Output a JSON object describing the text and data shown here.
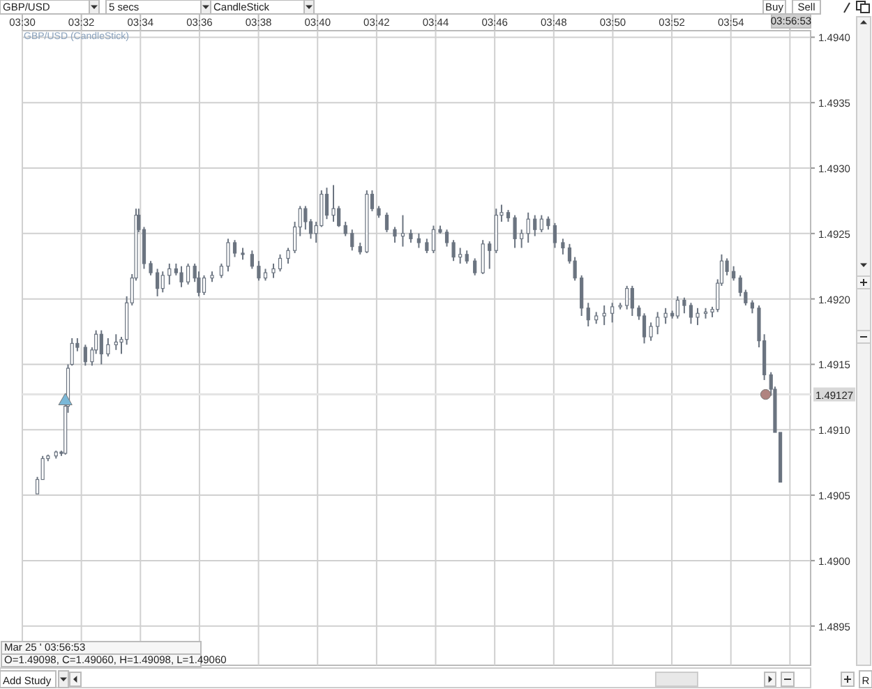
{
  "chart_data": {
    "type": "candlestick",
    "title": "GBP/USD (CandleStick)",
    "xlim": [
      3.5,
      3.945
    ],
    "ylim": [
      1.4892,
      1.49405
    ],
    "xticks": [
      {
        "value": 3.5,
        "label": "03:30"
      },
      {
        "value": 3.53333,
        "label": "03:32"
      },
      {
        "value": 3.56667,
        "label": "03:34"
      },
      {
        "value": 3.6,
        "label": "03:36"
      },
      {
        "value": 3.63333,
        "label": "03:38"
      },
      {
        "value": 3.66667,
        "label": "03:40"
      },
      {
        "value": 3.7,
        "label": "03:42"
      },
      {
        "value": 3.73333,
        "label": "03:44"
      },
      {
        "value": 3.76667,
        "label": "03:46"
      },
      {
        "value": 3.8,
        "label": "03:48"
      },
      {
        "value": 3.83333,
        "label": "03:50"
      },
      {
        "value": 3.86667,
        "label": "03:52"
      },
      {
        "value": 3.9,
        "label": "03:54"
      },
      {
        "value": 3.93333,
        "label": null
      }
    ],
    "yticks": [
      1.4895,
      {
        "value": 1.49,
        "label": "1.4900"
      },
      1.4905,
      {
        "value": 1.491,
        "label": "1.4910"
      },
      1.4915,
      {
        "value": 1.492,
        "label": "1.4920"
      },
      1.4925,
      {
        "value": 1.493,
        "label": "1.4930"
      },
      1.4935,
      {
        "value": 1.494,
        "label": "1.4940"
      }
    ],
    "grid": true,
    "ref_lines": [
      {
        "axis": "y",
        "value": 1.49127,
        "label": "1.49127",
        "color": "#e4e4e4"
      }
    ],
    "series": [
      {
        "color": "#6b7480",
        "x": [
          3.50848,
          3.51149,
          3.5145,
          3.51902,
          3.52203,
          3.52429,
          3.5258,
          3.52805,
          3.53107,
          3.53558,
          3.53935,
          3.54161,
          3.54462,
          3.54839,
          3.5529,
          3.55592,
          3.55893,
          3.56194,
          3.5642,
          3.5657,
          3.56872,
          3.57248,
          3.57625,
          3.57926,
          3.58302,
          3.58679,
          3.5898,
          3.59357,
          3.59733,
          3.59959,
          3.6026,
          3.60712,
          3.61239,
          3.61616,
          3.61992,
          3.62444,
          3.62971,
          3.63347,
          3.63724,
          3.64176,
          3.64552,
          3.65004,
          3.65381,
          3.65682,
          3.65983,
          3.66284,
          3.66585,
          3.66887,
          3.67188,
          3.67564,
          3.67865,
          3.68242,
          3.68618,
          3.6907,
          3.69447,
          3.69748,
          3.70124,
          3.70576,
          3.71028,
          3.7148,
          3.71932,
          3.72383,
          3.72835,
          3.73212,
          3.73588,
          3.73965,
          3.74341,
          3.74718,
          3.75094,
          3.75546,
          3.75998,
          3.76374,
          3.76751,
          3.77052,
          3.77429,
          3.77805,
          3.78182,
          3.78558,
          3.78935,
          3.79311,
          3.79688,
          3.80064,
          3.80516,
          3.80892,
          3.81194,
          3.8157,
          3.81947,
          3.82398,
          3.8285,
          3.83302,
          3.83754,
          3.8413,
          3.84431,
          3.84808,
          3.85109,
          3.85486,
          3.85862,
          3.86314,
          3.8669,
          3.86992,
          3.87368,
          3.87745,
          3.88121,
          3.88573,
          3.88949,
          3.89251,
          3.89477,
          3.89778,
          3.90154,
          3.90531,
          3.90832,
          3.91208,
          3.91585,
          3.91886,
          3.92263,
          3.92489,
          3.9279
        ],
        "ohlc": [
          [
            1.49051,
            1.49064,
            1.49051,
            1.49062
          ],
          [
            1.49062,
            1.4908,
            1.49062,
            1.49078
          ],
          [
            1.49078,
            1.49081,
            1.49076,
            1.4908
          ],
          [
            1.4908,
            1.49084,
            1.49078,
            1.49083
          ],
          [
            1.49083,
            1.49084,
            1.4908,
            1.49082
          ],
          [
            1.49082,
            1.49121,
            1.49081,
            1.49118
          ],
          [
            1.49118,
            1.4915,
            1.49113,
            1.49147
          ],
          [
            1.4915,
            1.4917,
            1.49149,
            1.49166
          ],
          [
            1.49166,
            1.4917,
            1.4916,
            1.49163
          ],
          [
            1.49163,
            1.49165,
            1.49149,
            1.49152
          ],
          [
            1.49152,
            1.49163,
            1.49149,
            1.49161
          ],
          [
            1.49161,
            1.49176,
            1.49158,
            1.49173
          ],
          [
            1.49173,
            1.49176,
            1.4915,
            1.49158
          ],
          [
            1.49158,
            1.4917,
            1.49156,
            1.49165
          ],
          [
            1.49165,
            1.49173,
            1.49161,
            1.49167
          ],
          [
            1.49167,
            1.49171,
            1.49158,
            1.49169
          ],
          [
            1.49169,
            1.49202,
            1.49165,
            1.49197
          ],
          [
            1.49197,
            1.49219,
            1.49195,
            1.49216
          ],
          [
            1.49216,
            1.49269,
            1.49214,
            1.49264
          ],
          [
            1.49264,
            1.49269,
            1.49251,
            1.49253
          ],
          [
            1.49253,
            1.49255,
            1.49223,
            1.49227
          ],
          [
            1.49227,
            1.49229,
            1.49218,
            1.4922
          ],
          [
            1.4922,
            1.49223,
            1.49202,
            1.49208
          ],
          [
            1.49208,
            1.49221,
            1.49205,
            1.49218
          ],
          [
            1.49218,
            1.49227,
            1.49211,
            1.49223
          ],
          [
            1.49223,
            1.49227,
            1.49218,
            1.4922
          ],
          [
            1.4922,
            1.49225,
            1.49209,
            1.49213
          ],
          [
            1.49213,
            1.49227,
            1.49211,
            1.49225
          ],
          [
            1.49225,
            1.49227,
            1.49213,
            1.49216
          ],
          [
            1.49216,
            1.49221,
            1.49202,
            1.49205
          ],
          [
            1.49205,
            1.49218,
            1.49203,
            1.49216
          ],
          [
            1.49216,
            1.49221,
            1.49213,
            1.49218
          ],
          [
            1.49218,
            1.49227,
            1.49216,
            1.49225
          ],
          [
            1.49225,
            1.49246,
            1.49221,
            1.49243
          ],
          [
            1.49243,
            1.49245,
            1.49232,
            1.49235
          ],
          [
            1.49235,
            1.49239,
            1.4923,
            1.49234
          ],
          [
            1.49234,
            1.49237,
            1.49223,
            1.49225
          ],
          [
            1.49225,
            1.49229,
            1.49214,
            1.49216
          ],
          [
            1.49216,
            1.49223,
            1.49214,
            1.4922
          ],
          [
            1.4922,
            1.49227,
            1.49216,
            1.49223
          ],
          [
            1.49223,
            1.49234,
            1.49221,
            1.49231
          ],
          [
            1.49231,
            1.49239,
            1.49227,
            1.49237
          ],
          [
            1.49237,
            1.49259,
            1.49235,
            1.49255
          ],
          [
            1.49255,
            1.49271,
            1.49248,
            1.49269
          ],
          [
            1.49269,
            1.49271,
            1.49253,
            1.49259
          ],
          [
            1.49259,
            1.49261,
            1.49246,
            1.4925
          ],
          [
            1.4925,
            1.49259,
            1.49243,
            1.49256
          ],
          [
            1.49256,
            1.49283,
            1.49255,
            1.4928
          ],
          [
            1.4928,
            1.49285,
            1.49261,
            1.49264
          ],
          [
            1.49264,
            1.49287,
            1.49259,
            1.49269
          ],
          [
            1.49269,
            1.49271,
            1.49255,
            1.49256
          ],
          [
            1.49256,
            1.49259,
            1.49248,
            1.4925
          ],
          [
            1.4925,
            1.49253,
            1.49237,
            1.4924
          ],
          [
            1.4924,
            1.49243,
            1.49234,
            1.49236
          ],
          [
            1.49236,
            1.49283,
            1.49235,
            1.4928
          ],
          [
            1.4928,
            1.49283,
            1.49267,
            1.49269
          ],
          [
            1.49269,
            1.49271,
            1.49262,
            1.49264
          ],
          [
            1.49264,
            1.49266,
            1.49251,
            1.49253
          ],
          [
            1.49253,
            1.49255,
            1.49243,
            1.49248
          ],
          [
            1.49248,
            1.49264,
            1.4924,
            1.4925
          ],
          [
            1.4925,
            1.49253,
            1.49243,
            1.49246
          ],
          [
            1.49246,
            1.4925,
            1.49239,
            1.49243
          ],
          [
            1.49243,
            1.49246,
            1.49235,
            1.49237
          ],
          [
            1.49237,
            1.49256,
            1.49235,
            1.49253
          ],
          [
            1.49253,
            1.49256,
            1.4925,
            1.49251
          ],
          [
            1.49251,
            1.49253,
            1.4924,
            1.49243
          ],
          [
            1.49243,
            1.49245,
            1.49229,
            1.49232
          ],
          [
            1.49232,
            1.49239,
            1.49227,
            1.49234
          ],
          [
            1.49234,
            1.49237,
            1.49227,
            1.49229
          ],
          [
            1.49229,
            1.49231,
            1.49218,
            1.4922
          ],
          [
            1.4922,
            1.49245,
            1.49219,
            1.49242
          ],
          [
            1.49242,
            1.49244,
            1.49223,
            1.49237
          ],
          [
            1.49237,
            1.49269,
            1.49235,
            1.49264
          ],
          [
            1.49264,
            1.49272,
            1.49259,
            1.49266
          ],
          [
            1.49266,
            1.49268,
            1.49259,
            1.49262
          ],
          [
            1.49262,
            1.49264,
            1.49239,
            1.49246
          ],
          [
            1.49246,
            1.49253,
            1.49239,
            1.4925
          ],
          [
            1.4925,
            1.49266,
            1.49243,
            1.49261
          ],
          [
            1.49261,
            1.49264,
            1.49248,
            1.49253
          ],
          [
            1.49253,
            1.49264,
            1.49251,
            1.49261
          ],
          [
            1.49261,
            1.49263,
            1.49253,
            1.49256
          ],
          [
            1.49256,
            1.49258,
            1.49239,
            1.49243
          ],
          [
            1.49243,
            1.49246,
            1.49234,
            1.49239
          ],
          [
            1.49239,
            1.49242,
            1.49227,
            1.49229
          ],
          [
            1.49229,
            1.49232,
            1.49214,
            1.49216
          ],
          [
            1.49216,
            1.49218,
            1.49187,
            1.49193
          ],
          [
            1.49193,
            1.49197,
            1.49179,
            1.49184
          ],
          [
            1.49184,
            1.4919,
            1.49181,
            1.49187
          ],
          [
            1.49187,
            1.49195,
            1.4918,
            1.49189
          ],
          [
            1.49189,
            1.49197,
            1.49182,
            1.49194
          ],
          [
            1.49194,
            1.49197,
            1.49192,
            1.49195
          ],
          [
            1.49195,
            1.4921,
            1.49192,
            1.49208
          ],
          [
            1.49208,
            1.4921,
            1.49187,
            1.49193
          ],
          [
            1.49193,
            1.49195,
            1.49184,
            1.49187
          ],
          [
            1.49187,
            1.49189,
            1.49166,
            1.49171
          ],
          [
            1.49171,
            1.49182,
            1.49168,
            1.49179
          ],
          [
            1.49179,
            1.4919,
            1.49173,
            1.49186
          ],
          [
            1.49186,
            1.49193,
            1.49181,
            1.49189
          ],
          [
            1.49189,
            1.49191,
            1.49185,
            1.49187
          ],
          [
            1.49187,
            1.49202,
            1.49185,
            1.49199
          ],
          [
            1.49199,
            1.49201,
            1.49189,
            1.49195
          ],
          [
            1.49195,
            1.49197,
            1.49181,
            1.49186
          ],
          [
            1.49186,
            1.49193,
            1.4918,
            1.49189
          ],
          [
            1.49189,
            1.49193,
            1.49185,
            1.4919
          ],
          [
            1.4919,
            1.49194,
            1.49186,
            1.49192
          ],
          [
            1.49192,
            1.49215,
            1.4919,
            1.49212
          ],
          [
            1.49212,
            1.49234,
            1.4921,
            1.49229
          ],
          [
            1.49229,
            1.49231,
            1.49218,
            1.49221
          ],
          [
            1.49221,
            1.49225,
            1.49214,
            1.49216
          ],
          [
            1.49216,
            1.49218,
            1.49202,
            1.49205
          ],
          [
            1.49205,
            1.49207,
            1.49195,
            1.49197
          ],
          [
            1.49197,
            1.49199,
            1.49189,
            1.49193
          ],
          [
            1.49193,
            1.49195,
            1.49163,
            1.49168
          ],
          [
            1.49168,
            1.49173,
            1.49138,
            1.49142
          ],
          [
            1.49142,
            1.49144,
            1.49126,
            1.49131
          ],
          [
            1.49131,
            1.49133,
            1.49098,
            1.49098
          ],
          [
            1.49098,
            1.49098,
            1.4906,
            1.4906
          ]
        ]
      },
      {
        "type": "scatter",
        "marker": "triangle",
        "color": "#7ab8d8",
        "x": [
          3.52429
        ],
        "values": [
          1.49122
        ]
      },
      {
        "type": "scatter",
        "marker": "circle",
        "color": "#b08480",
        "x": [
          3.91961
        ],
        "values": [
          1.49127
        ]
      }
    ],
    "annotations": [
      "GBP/USD",
      "5 secs",
      "CandleStick",
      "Buy",
      "Sell",
      "Add Study",
      "Mar 25 ' 03:56:53",
      "O=1.49098, C=1.49060, H=1.49098, L=1.49060",
      "03:56:53",
      "R"
    ]
  }
}
